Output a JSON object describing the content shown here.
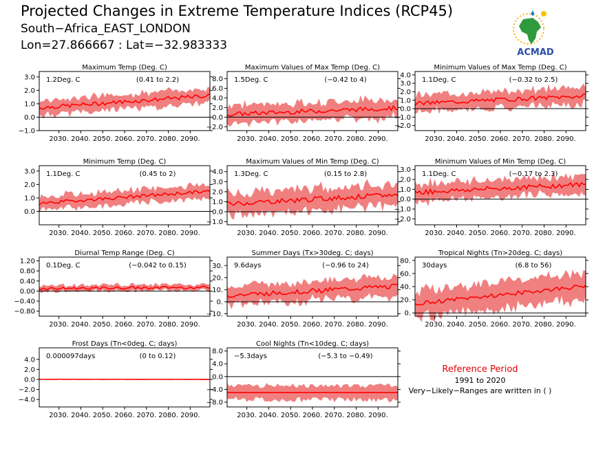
{
  "header": {
    "title": "Projected Changes in Extreme Temperature Indices (RCP45)",
    "location": "South−Africa_EAST_LONDON",
    "coordinates": "Lon=27.866667 : Lat=−32.983333",
    "logo_text": "ACMAD"
  },
  "reference": {
    "title": "Reference Period",
    "years": "1991 to 2020",
    "note": "Very−Likely−Ranges are written in ( )"
  },
  "colors": {
    "line": "#ff0000",
    "band": "#f08080",
    "zero": "#000000",
    "ref_title": "#e60000"
  },
  "chart_data": [
    {
      "type": "area",
      "title": "Maximum Temp (Deg. C)",
      "mean_label": "1.2Deg. C",
      "range_label": "(0.41 to 2.2)",
      "x_start": 2021,
      "x_end": 2099,
      "xticks": [
        "2030.",
        "2040.",
        "2050.",
        "2060.",
        "2070.",
        "2080.",
        "2090."
      ],
      "ylim": [
        -1,
        3.4
      ],
      "yticks": [
        "−1.0",
        "0.0",
        "1.0",
        "2.0",
        "3.0"
      ],
      "start": 0.7,
      "end": 1.6,
      "band": 0.55,
      "noise": 0.15
    },
    {
      "type": "area",
      "title": "Maximum Values of Max Temp (Deg. C)",
      "mean_label": "1.5Deg. C",
      "range_label": "(−0.42 to 4)",
      "x_start": 2021,
      "x_end": 2099,
      "xticks": [
        "2030.",
        "2040.",
        "2050.",
        "2060.",
        "2070.",
        "2080.",
        "2090."
      ],
      "ylim": [
        -2.8,
        9.5
      ],
      "yticks": [
        "−2.0",
        "0.0",
        "2.0",
        "4.0",
        "6.0",
        "8.0"
      ],
      "start": 0.6,
      "end": 1.9,
      "band": 1.9,
      "noise": 0.45
    },
    {
      "type": "area",
      "title": "Minimum Values of Max Temp (Deg. C)",
      "mean_label": "1.1Deg. C",
      "range_label": "(−0.32 to 2.5)",
      "x_start": 2021,
      "x_end": 2099,
      "xticks": [
        "2030.",
        "2040.",
        "2050.",
        "2060.",
        "2070.",
        "2080.",
        "2090."
      ],
      "ylim": [
        -2.6,
        4.4
      ],
      "yticks": [
        "−2.0",
        "−1.0",
        "0.0",
        "1.0",
        "2.0",
        "3.0",
        "4.0"
      ],
      "start": 0.6,
      "end": 1.5,
      "band": 1.0,
      "noise": 0.25
    },
    {
      "type": "area",
      "title": "Minimum Temp (Deg. C)",
      "mean_label": "1.1Deg. C",
      "range_label": "(0.45 to 2)",
      "x_start": 2021,
      "x_end": 2099,
      "xticks": [
        "2030.",
        "2040.",
        "2050.",
        "2060.",
        "2070.",
        "2080.",
        "2090."
      ],
      "ylim": [
        -1,
        3.4
      ],
      "yticks": [
        "0.0",
        "1.0",
        "2.0",
        "3.0"
      ],
      "start": 0.6,
      "end": 1.5,
      "band": 0.5,
      "noise": 0.12
    },
    {
      "type": "area",
      "title": "Maximum Values of Min Temp (Deg. C)",
      "mean_label": "1.3Deg. C",
      "range_label": "(0.15 to 2.8)",
      "x_start": 2021,
      "x_end": 2099,
      "xticks": [
        "2030.",
        "2040.",
        "2050.",
        "2060.",
        "2070.",
        "2080.",
        "2090."
      ],
      "ylim": [
        -1.3,
        4.6
      ],
      "yticks": [
        "−1.0",
        "0.0",
        "1.0",
        "2.0",
        "3.0",
        "4.0"
      ],
      "start": 0.8,
      "end": 1.7,
      "band": 1.1,
      "noise": 0.25
    },
    {
      "type": "area",
      "title": "Minimum Values of Min Temp (Deg. C)",
      "mean_label": "1.1Deg. C",
      "range_label": "(−0.17 to 2.3)",
      "x_start": 2021,
      "x_end": 2099,
      "xticks": [
        "2030.",
        "2040.",
        "2050.",
        "2060.",
        "2070.",
        "2080.",
        "2090."
      ],
      "ylim": [
        -2.6,
        3.4
      ],
      "yticks": [
        "−2.0",
        "−1.0",
        "0.0",
        "1.0",
        "2.0",
        "3.0"
      ],
      "start": 0.7,
      "end": 1.5,
      "band": 0.9,
      "noise": 0.25
    },
    {
      "type": "area",
      "title": "Diurnal Temp Range (Deg. C)",
      "mean_label": "0.1Deg. C",
      "range_label": "(−0.042 to 0.15)",
      "x_start": 2021,
      "x_end": 2099,
      "xticks": [
        "2030.",
        "2040.",
        "2050.",
        "2060.",
        "2070.",
        "2080.",
        "2090."
      ],
      "ylim": [
        -1,
        1.35
      ],
      "yticks": [
        "−0.80",
        "−0.40",
        "0.00",
        "0.40",
        "0.80",
        "1.20"
      ],
      "start": 0.1,
      "end": 0.15,
      "band": 0.12,
      "noise": 0.05
    },
    {
      "type": "area",
      "title": "Summer Days (Tx>30deg. C; days)",
      "mean_label": "9.6days",
      "range_label": "(−0.96 to 24)",
      "x_start": 2021,
      "x_end": 2099,
      "xticks": [
        "2030.",
        "2040.",
        "2050.",
        "2060.",
        "2070.",
        "2080.",
        "2090."
      ],
      "ylim": [
        -12,
        37
      ],
      "yticks": [
        "−10.",
        "0.",
        "10.",
        "20.",
        "30."
      ],
      "start": 5,
      "end": 13,
      "band": 8,
      "noise": 2
    },
    {
      "type": "area",
      "title": "Tropical Nights (Tn>20deg. C; days)",
      "mean_label": "30days",
      "range_label": "(6.8 to 56)",
      "x_start": 2021,
      "x_end": 2099,
      "xticks": [
        "2030.",
        "2040.",
        "2050.",
        "2060.",
        "2070.",
        "2080.",
        "2090."
      ],
      "ylim": [
        -5,
        85
      ],
      "yticks": [
        "0.",
        "20.",
        "40.",
        "60.",
        "80."
      ],
      "start": 14,
      "end": 41,
      "band": 20,
      "noise": 3
    },
    {
      "type": "area",
      "title": "Frost Days (Tn<0deg. C; days)",
      "mean_label": "0.000097days",
      "range_label": "(0 to 0.12)",
      "x_start": 2021,
      "x_end": 2099,
      "xticks": [
        "2030.",
        "2040.",
        "2050.",
        "2060.",
        "2070.",
        "2080.",
        "2090."
      ],
      "ylim": [
        -5.5,
        6.3
      ],
      "yticks": [
        "−4.0",
        "−2.0",
        "0.0",
        "2.0",
        "4.0"
      ],
      "start": 0.02,
      "end": 0.0,
      "band": 0.05,
      "noise": 0.02
    },
    {
      "type": "area",
      "title": "Cool Nights (Tn<10deg. C; days)",
      "mean_label": "−5.3days",
      "range_label": "(−5.3 to −0.49)",
      "x_start": 2021,
      "x_end": 2099,
      "xticks": [
        "2030.",
        "2040.",
        "2050.",
        "2060.",
        "2070.",
        "2080.",
        "2090."
      ],
      "ylim": [
        -9.5,
        9
      ],
      "yticks": [
        "−8.0",
        "−4.0",
        "0.0",
        "4.0",
        "8.0"
      ],
      "start": -5.0,
      "end": -5.0,
      "band": 2.2,
      "noise": 0.0
    }
  ]
}
